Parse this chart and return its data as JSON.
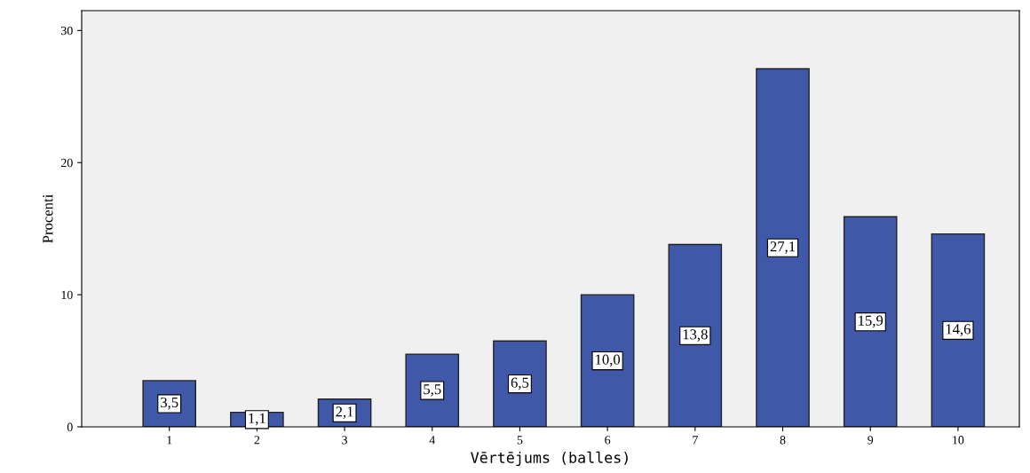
{
  "chart_data": {
    "type": "bar",
    "xlabel": "Vērtējums (balles)",
    "ylabel": "Procenti",
    "categories": [
      "1",
      "2",
      "3",
      "4",
      "5",
      "6",
      "7",
      "8",
      "9",
      "10"
    ],
    "values": [
      3.5,
      1.1,
      2.1,
      5.5,
      6.5,
      10.0,
      13.8,
      27.1,
      15.9,
      14.6
    ],
    "value_labels": [
      "3,5",
      "1,1",
      "2,1",
      "5,5",
      "6,5",
      "10,0",
      "13,8",
      "27,1",
      "15,9",
      "14,6"
    ],
    "color": "#3f58a8",
    "ylim": [
      0,
      31.5
    ],
    "yticks": [
      0,
      10,
      20,
      30
    ],
    "grid": false,
    "legend": false
  }
}
